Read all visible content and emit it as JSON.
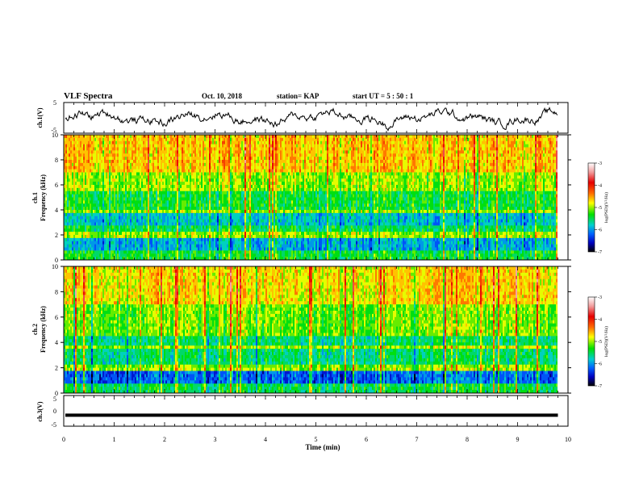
{
  "header": {
    "title": "VLF Spectra",
    "date": "Oct. 10, 2018",
    "station": "station= KAP",
    "start_ut": "start  UT =   5  : 50 : 1"
  },
  "panels": {
    "ch1_wave": {
      "ylabel": "ch.1(V)",
      "ytick_top": "5",
      "ytick_bottom": "-5"
    },
    "spec1": {
      "ylabel_line1": "ch.1",
      "ylabel_line2": "Frequency  (kHz)",
      "yticks": [
        "0",
        "2",
        "4",
        "6",
        "8",
        "10"
      ]
    },
    "spec2": {
      "ylabel_line1": "ch.2",
      "ylabel_line2": "Frequency  (kHz)",
      "yticks": [
        "0",
        "2",
        "4",
        "6",
        "8",
        "10"
      ]
    },
    "ch3_wave": {
      "ylabel": "ch.3(V)",
      "ytick_top": "5",
      "ytick_mid": "0",
      "ytick_bottom": "-5"
    }
  },
  "colorbar": {
    "label": "log(PSD)(V²/Hz)",
    "ticks": [
      "-3",
      "-4",
      "-5",
      "-6",
      "-7"
    ],
    "colors": [
      "#ffffff",
      "#f2a0a0",
      "#e60000",
      "#ff6a00",
      "#ffff00",
      "#00e000",
      "#00d0d0",
      "#0060ff",
      "#0000c0",
      "#000000"
    ]
  },
  "xaxis": {
    "label": "Time  (min)",
    "ticks": [
      "0",
      "1",
      "2",
      "3",
      "4",
      "5",
      "6",
      "7",
      "8",
      "9",
      "10"
    ]
  },
  "chart_data": {
    "type": "heatmap",
    "xlim": [
      0,
      10
    ],
    "freq_lim_khz": [
      0,
      10
    ],
    "psd_range": [
      -7,
      -3
    ],
    "log_psd_scale": true,
    "ch1_ylim": [
      -5,
      5
    ],
    "ch3_ylim": [
      -5,
      5
    ],
    "ch3_value": -1.4,
    "recording_end_min": 9.8
  }
}
